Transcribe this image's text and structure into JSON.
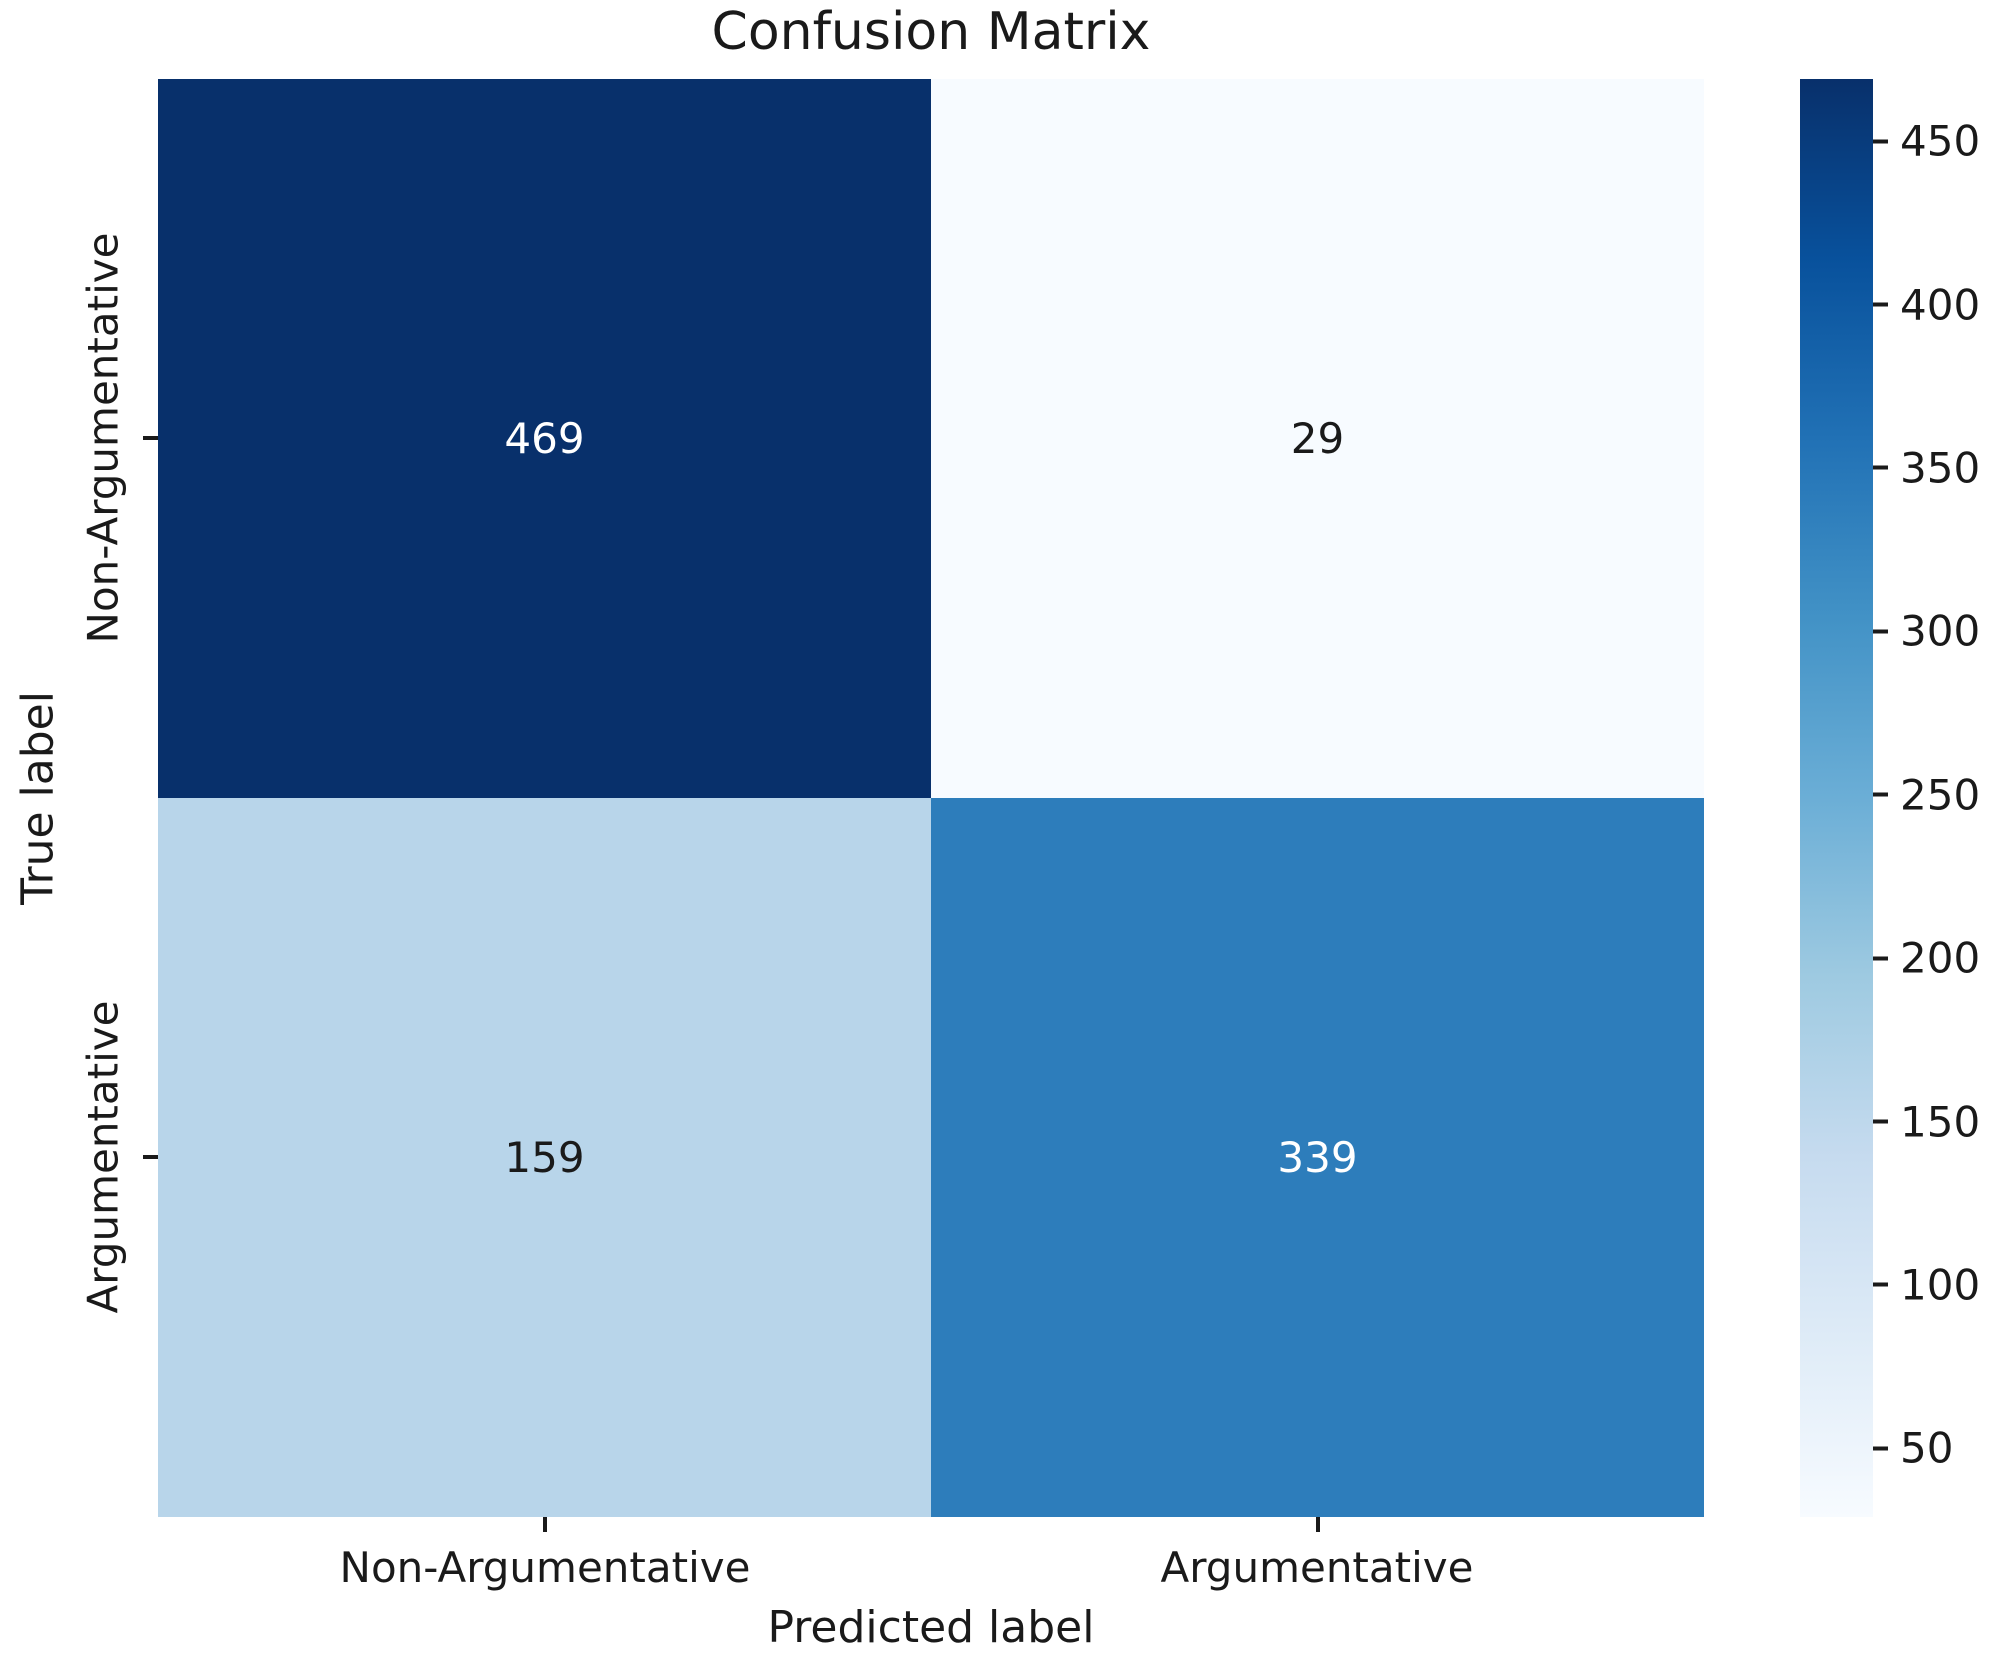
{
  "title": "Confusion Matrix",
  "colors": {
    "background": "#ffffff",
    "text": "#1a1a1a",
    "annotation_light": "#ffffff",
    "annotation_dark": "#1a1a1a"
  },
  "chart_data": {
    "type": "heatmap",
    "title": "Confusion Matrix",
    "xlabel": "Predicted label",
    "ylabel": "True label",
    "x_ticklabels": [
      "Non-Argumentative",
      "Argumentative"
    ],
    "y_ticklabels": [
      "Non-Argumentative",
      "Argumentative"
    ],
    "matrix": [
      [
        469,
        29
      ],
      [
        159,
        339
      ]
    ],
    "cells": [
      [
        {
          "value": 469,
          "bg": "#08306b",
          "fg": "#ffffff"
        },
        {
          "value": 29,
          "bg": "#f7fbff",
          "fg": "#1a1a1a"
        }
      ],
      [
        {
          "value": 159,
          "bg": "#b8d5ea",
          "fg": "#1a1a1a"
        },
        {
          "value": 339,
          "bg": "#2d7dbb",
          "fg": "#ffffff"
        }
      ]
    ],
    "grid": false,
    "legend": "colorbar-right",
    "colorbar": {
      "vmin": 29,
      "vmax": 469,
      "ticks": [
        450,
        400,
        350,
        300,
        250,
        200,
        150,
        100,
        50
      ],
      "gradient_top_to_bottom": [
        "#08306b",
        "#08519c",
        "#2171b5",
        "#4292c6",
        "#6baed6",
        "#9ecae1",
        "#c6dbef",
        "#deebf7",
        "#f7fbff"
      ]
    }
  }
}
